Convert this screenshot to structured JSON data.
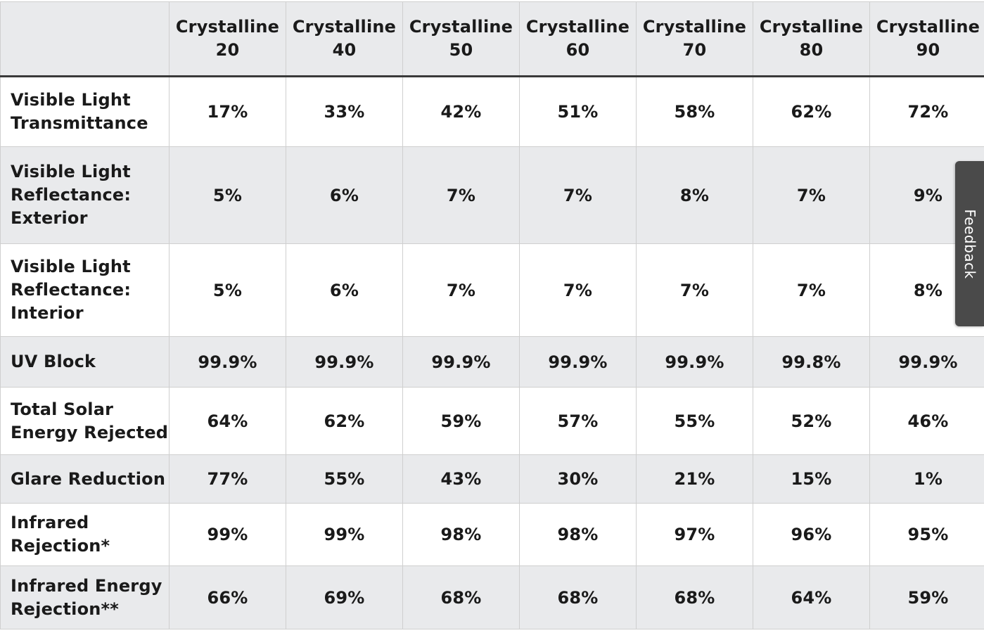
{
  "table": {
    "columns": [
      {
        "line1": "Crystalline",
        "line2": "20"
      },
      {
        "line1": "Crystalline",
        "line2": "40"
      },
      {
        "line1": "Crystalline",
        "line2": "50"
      },
      {
        "line1": "Crystalline",
        "line2": "60"
      },
      {
        "line1": "Crystalline",
        "line2": "70"
      },
      {
        "line1": "Crystalline",
        "line2": "80"
      },
      {
        "line1": "Crystalline",
        "line2": "90"
      }
    ],
    "rows": [
      {
        "label_lines": [
          "Visible Light",
          "Transmittance"
        ],
        "values": [
          "17%",
          "33%",
          "42%",
          "51%",
          "58%",
          "62%",
          "72%"
        ]
      },
      {
        "label_lines": [
          "Visible Light",
          "Reflectance:",
          "Exterior"
        ],
        "values": [
          "5%",
          "6%",
          "7%",
          "7%",
          "8%",
          "7%",
          "9%"
        ]
      },
      {
        "label_lines": [
          "Visible Light",
          "Reflectance:",
          "Interior"
        ],
        "values": [
          "5%",
          "6%",
          "7%",
          "7%",
          "7%",
          "7%",
          "8%"
        ]
      },
      {
        "label_lines": [
          "UV Block"
        ],
        "values": [
          "99.9%",
          "99.9%",
          "99.9%",
          "99.9%",
          "99.9%",
          "99.8%",
          "99.9%"
        ]
      },
      {
        "label_lines": [
          "Total Solar",
          "Energy Rejected"
        ],
        "values": [
          "64%",
          "62%",
          "59%",
          "57%",
          "55%",
          "52%",
          "46%"
        ]
      },
      {
        "label_lines": [
          "Glare Reduction"
        ],
        "values": [
          "77%",
          "55%",
          "43%",
          "30%",
          "21%",
          "15%",
          "1%"
        ]
      },
      {
        "label_lines": [
          "Infrared",
          "Rejection*"
        ],
        "values": [
          "99%",
          "99%",
          "98%",
          "98%",
          "97%",
          "96%",
          "95%"
        ]
      },
      {
        "label_lines": [
          "Infrared Energy",
          "Rejection**"
        ],
        "values": [
          "66%",
          "69%",
          "68%",
          "68%",
          "68%",
          "64%",
          "59%"
        ]
      }
    ]
  },
  "feedback": {
    "label": "Feedback"
  }
}
